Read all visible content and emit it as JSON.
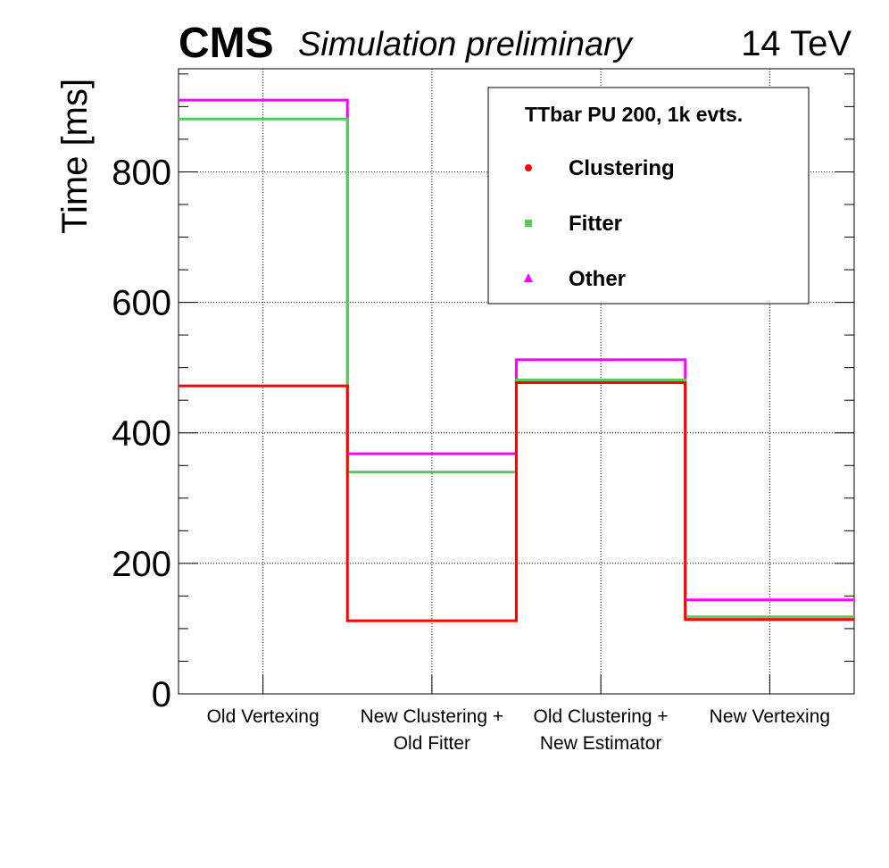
{
  "header": {
    "experiment": "CMS",
    "subtitle": "Simulation preliminary",
    "energy": "14 TeV"
  },
  "chart_data": {
    "type": "bar",
    "style": "step-histogram",
    "categories": [
      [
        "Old Vertexing"
      ],
      [
        "New Clustering +",
        "Old Fitter"
      ],
      [
        "Old Clustering +",
        "New Estimator"
      ],
      [
        "New Vertexing"
      ]
    ],
    "series": [
      {
        "name": "Clustering",
        "color": "#ff0000",
        "marker": "circle",
        "values": [
          472,
          112,
          477,
          114
        ]
      },
      {
        "name": "Fitter",
        "color": "#55cc55",
        "marker": "square",
        "values": [
          881,
          340,
          481,
          118
        ]
      },
      {
        "name": "Other",
        "color": "#ff00ff",
        "marker": "triangle",
        "values": [
          910,
          368,
          512,
          144
        ]
      }
    ],
    "cumulative": true,
    "ylabel": "Time [ms]",
    "xlabel": "",
    "ylim": [
      0,
      958
    ],
    "yticks": [
      0,
      200,
      400,
      600,
      800
    ],
    "grid": true,
    "legend": {
      "title": "TTbar PU 200, 1k evts.",
      "placement": "top-right"
    }
  }
}
